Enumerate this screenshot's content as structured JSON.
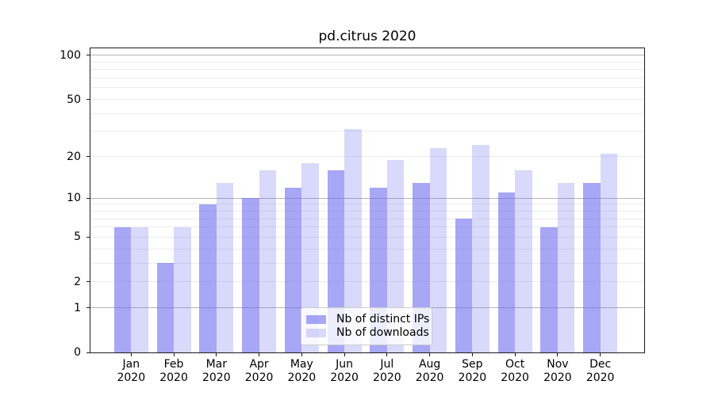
{
  "chart_data": {
    "type": "bar",
    "title": "pd.citrus 2020",
    "categories": [
      {
        "month": "Jan",
        "year": "2020"
      },
      {
        "month": "Feb",
        "year": "2020"
      },
      {
        "month": "Mar",
        "year": "2020"
      },
      {
        "month": "Apr",
        "year": "2020"
      },
      {
        "month": "May",
        "year": "2020"
      },
      {
        "month": "Jun",
        "year": "2020"
      },
      {
        "month": "Jul",
        "year": "2020"
      },
      {
        "month": "Aug",
        "year": "2020"
      },
      {
        "month": "Sep",
        "year": "2020"
      },
      {
        "month": "Oct",
        "year": "2020"
      },
      {
        "month": "Nov",
        "year": "2020"
      },
      {
        "month": "Dec",
        "year": "2020"
      }
    ],
    "series": [
      {
        "name": "Nb of distinct IPs",
        "color": "#a7a7f6",
        "fill": "rgba(108,108,240,0.60)",
        "values": [
          6,
          3,
          9,
          10,
          12,
          16,
          12,
          13,
          7,
          11,
          6,
          13
        ]
      },
      {
        "name": "Nb of downloads",
        "color": "#d9d9fb",
        "fill": "rgba(108,108,240,0.26)",
        "values": [
          6,
          6,
          13,
          16,
          18,
          31,
          19,
          23,
          24,
          16,
          13,
          21
        ]
      }
    ],
    "yscale": "log1p",
    "ylim": [
      0,
      112
    ],
    "y_major_ticks": [
      0,
      1,
      2,
      5,
      10,
      20,
      50,
      100
    ],
    "y_tick_labels": [
      "0",
      "1",
      "2",
      "5",
      "10",
      "20",
      "50",
      "100"
    ],
    "y_decade_gridlines": [
      1,
      10,
      100
    ],
    "y_light_gridlines": [
      2,
      3,
      4,
      5,
      6,
      7,
      8,
      9,
      20,
      30,
      40,
      50,
      60,
      70,
      80,
      90
    ],
    "grid": true,
    "legend_position": "lower center",
    "colors": {
      "decade_gridline": "#b3b3b3",
      "light_gridline": "#ebebeb",
      "spine": "#1a1a1a",
      "background": "#ffffff"
    }
  }
}
